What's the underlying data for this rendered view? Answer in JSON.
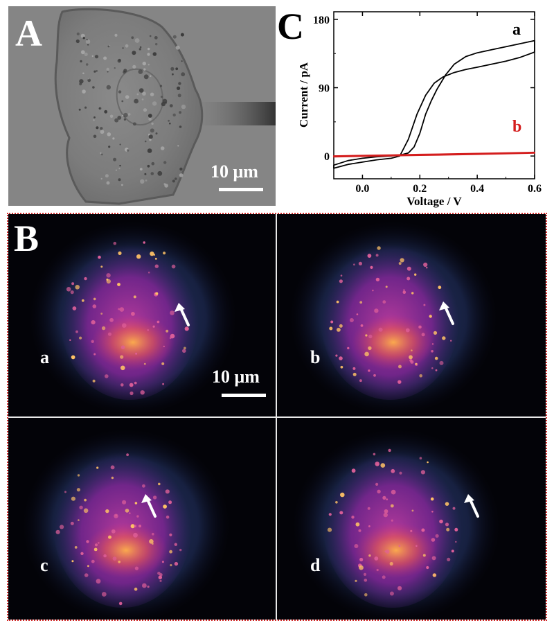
{
  "panels": {
    "A": {
      "letter": "A",
      "scale_label": "10 μm"
    },
    "B": {
      "letter": "B",
      "scale_label": "10 μm",
      "frames": [
        {
          "label": "a"
        },
        {
          "label": "b"
        },
        {
          "label": "c"
        },
        {
          "label": "d"
        }
      ]
    },
    "C": {
      "letter": "C"
    }
  },
  "chart_data": {
    "type": "line",
    "xlabel": "Voltage / V",
    "ylabel": "Current / pA",
    "xlim": [
      -0.1,
      0.6
    ],
    "ylim": [
      -30,
      190
    ],
    "x_ticks": [
      0.0,
      0.2,
      0.4,
      0.6
    ],
    "x_tick_labels": [
      "0.0",
      "0.2",
      "0.4",
      "0.6"
    ],
    "y_ticks": [
      0,
      90,
      180
    ],
    "y_tick_labels": [
      "0",
      "90",
      "180"
    ],
    "series": [
      {
        "name": "a",
        "color": "#000000",
        "x": [
          -0.1,
          -0.05,
          0.0,
          0.05,
          0.1,
          0.13,
          0.16,
          0.19,
          0.22,
          0.25,
          0.28,
          0.32,
          0.36,
          0.4,
          0.45,
          0.5,
          0.55,
          0.6,
          0.6,
          0.55,
          0.5,
          0.45,
          0.4,
          0.36,
          0.32,
          0.29,
          0.26,
          0.24,
          0.22,
          0.2,
          0.18,
          0.16,
          0.14,
          0.12,
          0.1,
          0.05,
          0.0,
          -0.05,
          -0.1
        ],
        "y": [
          -16,
          -11,
          -8,
          -5,
          -3,
          0,
          22,
          55,
          80,
          96,
          104,
          110,
          114,
          117,
          121,
          125,
          130,
          137,
          152,
          148,
          144,
          140,
          136,
          131,
          121,
          107,
          88,
          73,
          55,
          30,
          12,
          4,
          2,
          1,
          0,
          -1,
          -3,
          -6,
          -12
        ]
      },
      {
        "name": "b",
        "color": "#d41e1e",
        "x": [
          -0.1,
          0.0,
          0.1,
          0.2,
          0.3,
          0.4,
          0.5,
          0.6,
          0.6,
          0.5,
          0.4,
          0.3,
          0.2,
          0.1,
          0.0,
          -0.1
        ],
        "y": [
          -1,
          -0.3,
          0.3,
          1,
          1.6,
          2.3,
          3,
          4,
          4.8,
          4,
          3.3,
          2.6,
          2,
          1.3,
          0.7,
          0
        ]
      }
    ]
  }
}
